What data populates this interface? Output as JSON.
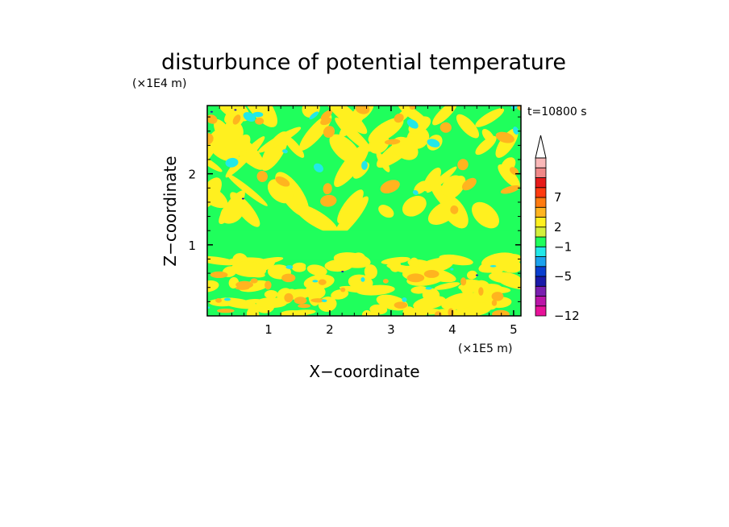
{
  "chart_data": {
    "type": "heatmap",
    "title": "disturbunce of potential temperature",
    "time_label": "t=10800 s",
    "xlabel": "X−coordinate",
    "ylabel": "Z−coordinate",
    "x_unit": "(×1E5 m)",
    "y_unit": "(×1E4 m)",
    "x_ticks": [
      {
        "value": 1,
        "label": "1"
      },
      {
        "value": 2,
        "label": "2"
      },
      {
        "value": 3,
        "label": "3"
      },
      {
        "value": 4,
        "label": "4"
      },
      {
        "value": 5,
        "label": "5"
      }
    ],
    "y_ticks": [
      {
        "value": 1,
        "label": "1"
      },
      {
        "value": 2,
        "label": "2"
      }
    ],
    "xlim": [
      0,
      5.12
    ],
    "ylim": [
      0,
      2.96
    ],
    "colorbar": {
      "levels": [
        {
          "color": "#e8129a"
        },
        {
          "color": "#bb15a8"
        },
        {
          "color": "#7a1fb0"
        },
        {
          "color": "#1a1aaa"
        },
        {
          "color": "#0a3fd0"
        },
        {
          "color": "#1ba2ee"
        },
        {
          "color": "#22e8e8"
        },
        {
          "color": "#1fff5c"
        },
        {
          "color": "#d4f03a"
        },
        {
          "color": "#fff01f"
        },
        {
          "color": "#ffb41f"
        },
        {
          "color": "#ff7a10"
        },
        {
          "color": "#ff3a10"
        },
        {
          "color": "#e61a1a"
        },
        {
          "color": "#f08888"
        },
        {
          "color": "#fab8b8"
        }
      ],
      "labels": [
        {
          "value": -12,
          "label": "−12",
          "boundary": 0
        },
        {
          "value": -5,
          "label": "−5",
          "boundary": 4
        },
        {
          "value": -1,
          "label": "−1",
          "boundary": 7
        },
        {
          "value": 2,
          "label": "2",
          "boundary": 9
        },
        {
          "value": 7,
          "label": "7",
          "boundary": 12
        }
      ]
    },
    "field": {
      "background": "#1fff5c",
      "mid_band": {
        "z": [
          0.8,
          1.2
        ],
        "color": "#1fff5c"
      },
      "warm_color": "#fff01f",
      "warmer_color": "#ffb41f",
      "cold_color": "#22e8e8",
      "coldest_color": "#1a1aaa"
    }
  }
}
